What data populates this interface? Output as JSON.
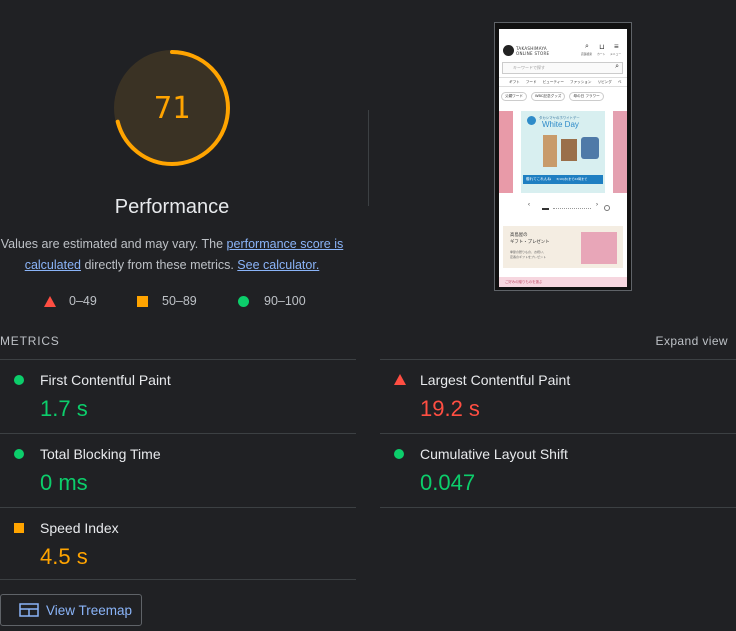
{
  "score": {
    "value": "71",
    "fraction": 0.71,
    "color": "#ffa400"
  },
  "title": "Performance",
  "description": {
    "part1": "Values are estimated and may vary. The ",
    "link1": "performance score is calculated",
    "part2": " directly from these metrics. ",
    "link2": "See calculator."
  },
  "legend": [
    {
      "range": "0–49",
      "icon": "triangle-icon",
      "color": "#ff4e42"
    },
    {
      "range": "50–89",
      "icon": "square-icon",
      "color": "#ffa400"
    },
    {
      "range": "90–100",
      "icon": "circle-icon",
      "color": "#0cce6b"
    }
  ],
  "metrics_label": "METRICS",
  "expand_view": "Expand view",
  "metrics": {
    "fcp": {
      "name": "First Contentful Paint",
      "value": "1.7 s",
      "status": "pass"
    },
    "lcp": {
      "name": "Largest Contentful Paint",
      "value": "19.2 s",
      "status": "fail"
    },
    "tbt": {
      "name": "Total Blocking Time",
      "value": "0 ms",
      "status": "pass"
    },
    "cls": {
      "name": "Cumulative Layout Shift",
      "value": "0.047",
      "status": "pass"
    },
    "si": {
      "name": "Speed Index",
      "value": "4.5 s",
      "status": "average"
    }
  },
  "treemap_button": "View Treemap",
  "thumbnail": {
    "brand_line1": "TAKASHIMAYA",
    "brand_line2": "ONLINE STORE",
    "search_placeholder": "キーワードで探す",
    "header_icons": [
      "search-icon",
      "cart-icon",
      "menu-icon"
    ],
    "header_icon_labels": [
      "店舗検索",
      "カート",
      "メニュー"
    ],
    "nav_items": [
      "ギフト",
      "フード",
      "ビューティー",
      "ファッション",
      "リビング",
      "ベ"
    ],
    "chips": [
      "父親ワード",
      "WBC記念グッズ",
      "母の日 フラワー"
    ],
    "banner_small": "タカシマヤのホワイトデー",
    "banner_title": "White Day",
    "banner_cta": "贈れてこれんね",
    "banner_cta_date": "3/10(水)まで22時まで",
    "gift_title1": "高島屋の",
    "gift_title2": "ギフト・プレゼント",
    "gift_text1": "季節の贈りもの、お祝い、",
    "gift_text2": "定番のギフトをプレゼント",
    "footer_text": "ご好みの贈りものを選ぶ"
  }
}
